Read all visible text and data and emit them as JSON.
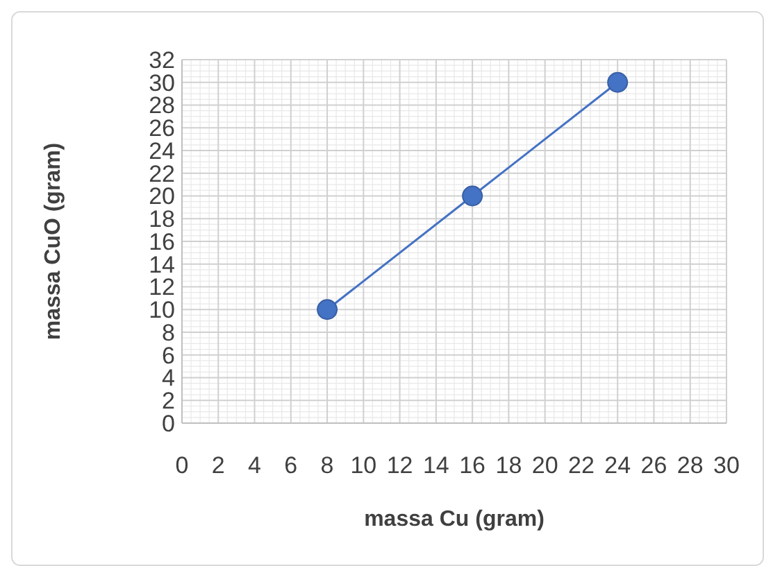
{
  "chart_data": {
    "type": "line",
    "xlabel": "massa Cu (gram)",
    "ylabel": "massa CuO (gram)",
    "x": [
      8,
      16,
      24
    ],
    "series": [
      {
        "color": "#4472c4",
        "values": [
          10,
          20,
          30
        ]
      }
    ],
    "xlim": [
      0,
      30
    ],
    "xticks": [
      0,
      2,
      4,
      6,
      8,
      10,
      12,
      14,
      16,
      18,
      20,
      22,
      24,
      26,
      28,
      30
    ],
    "ylim": [
      0,
      32
    ],
    "yticks": [
      0,
      2,
      4,
      6,
      8,
      10,
      12,
      14,
      16,
      18,
      20,
      22,
      24,
      26,
      28,
      30,
      32
    ],
    "grid": true,
    "marker": "circle",
    "line_style": "solid"
  }
}
